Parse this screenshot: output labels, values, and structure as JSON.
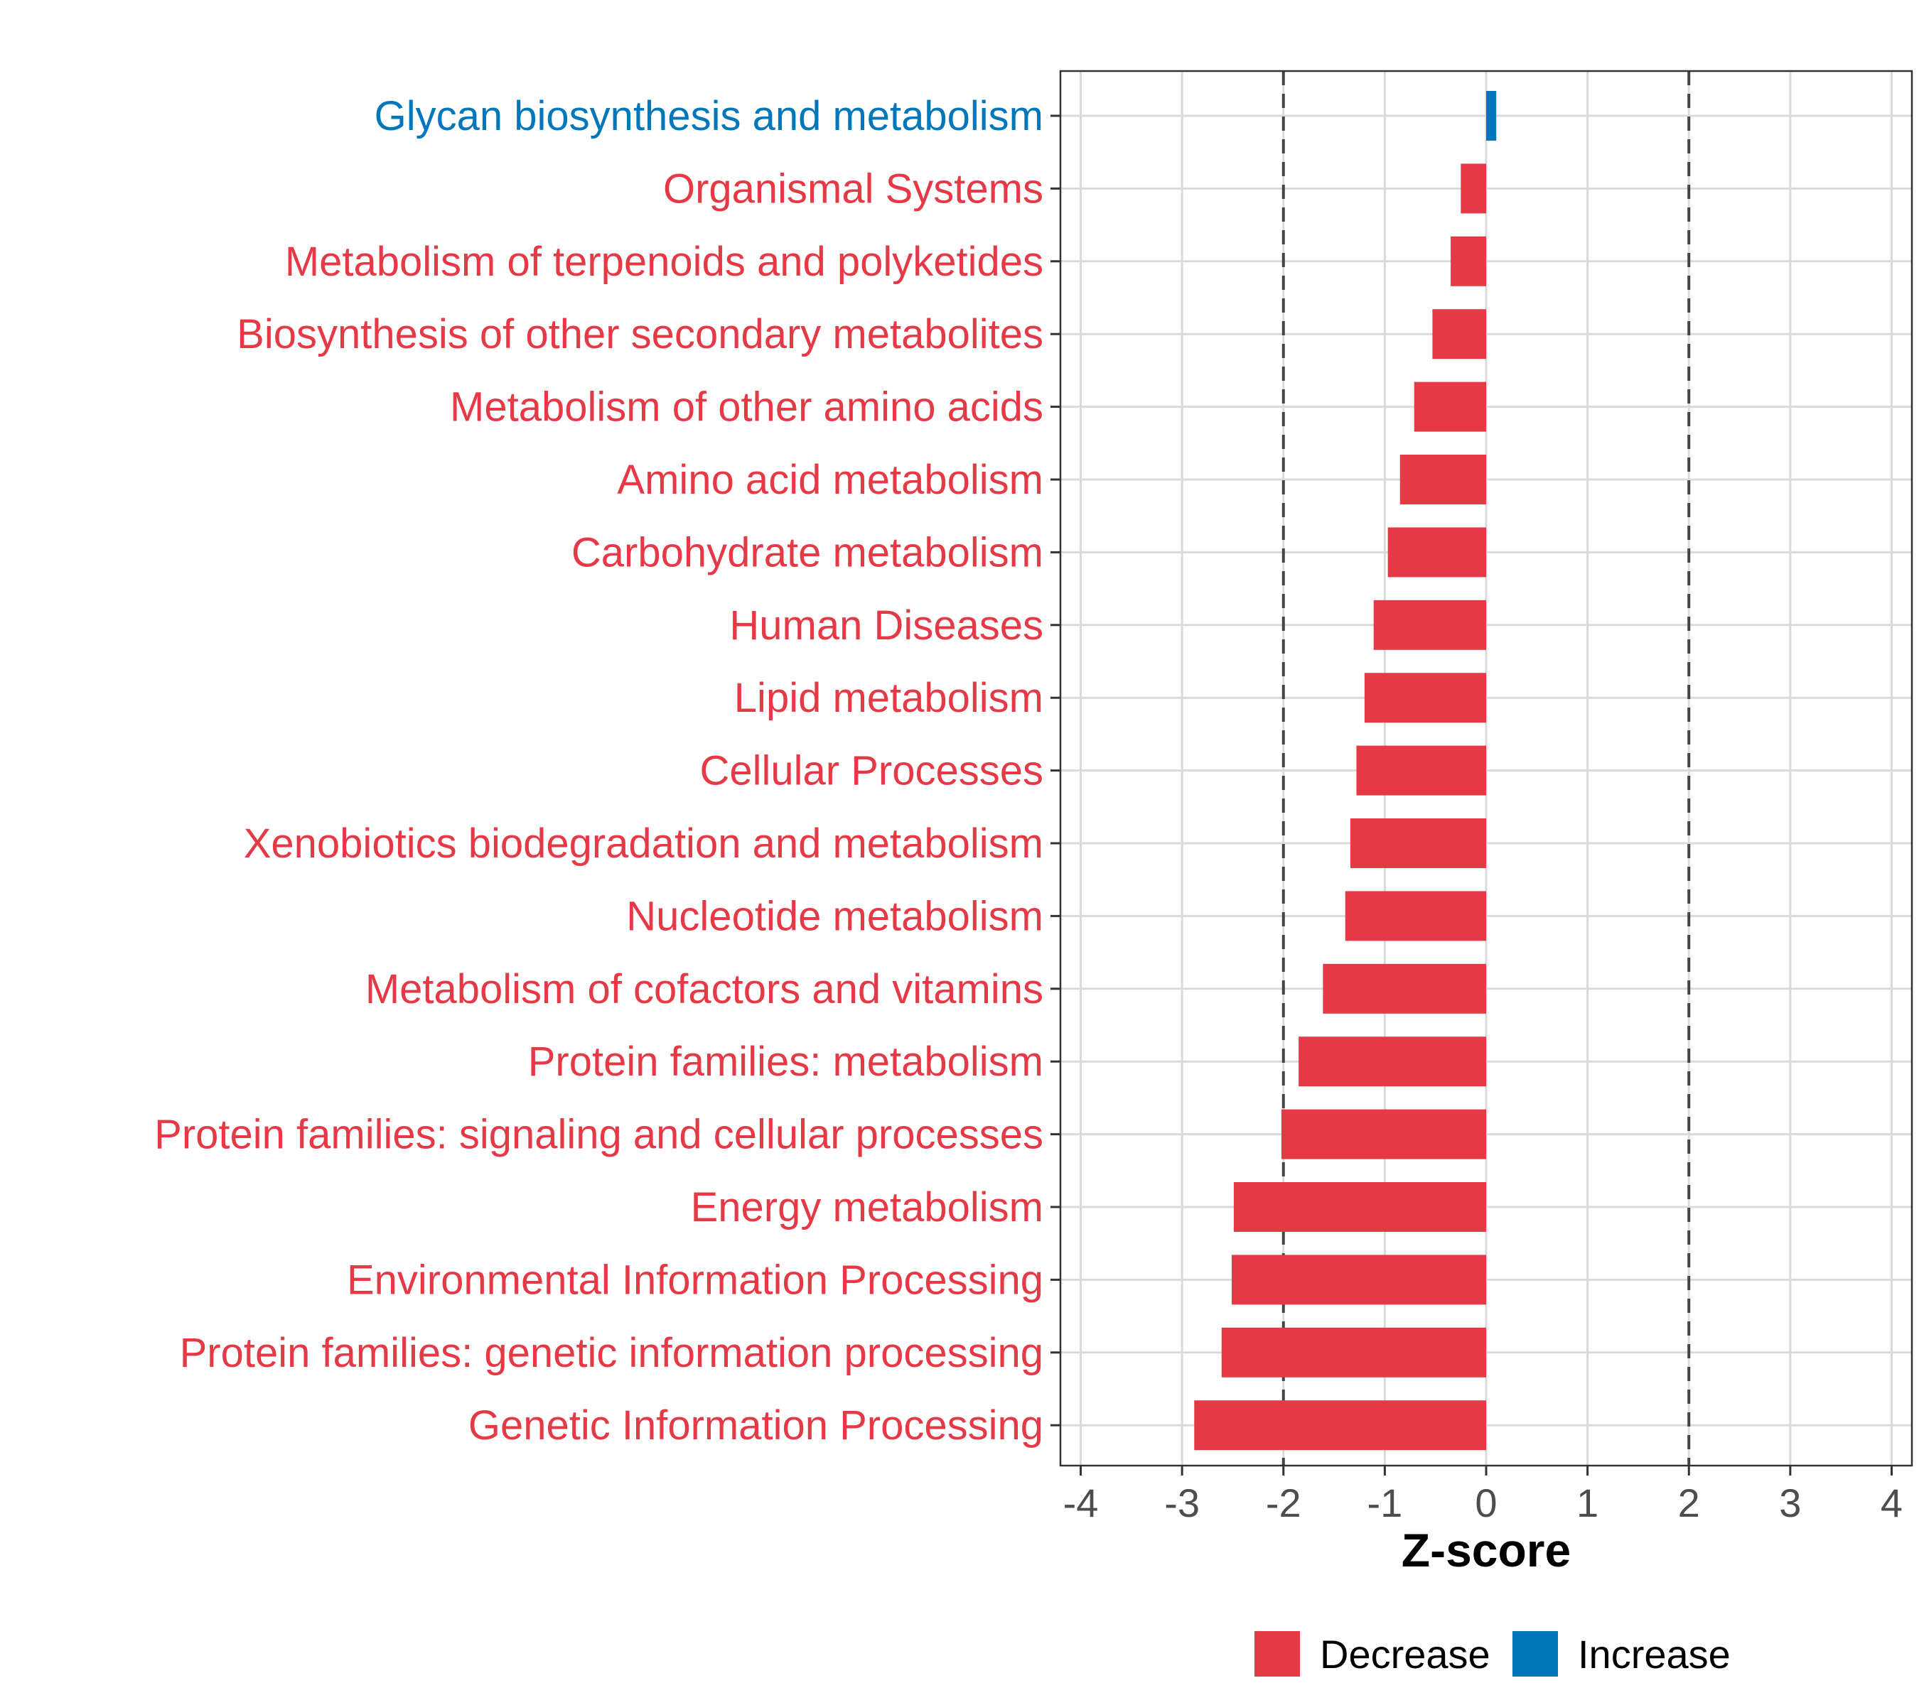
{
  "chart_data": {
    "type": "bar",
    "orientation": "horizontal",
    "title": "",
    "xlabel": "Z-score",
    "ylabel": "",
    "xlim": [
      -4.2,
      4.2
    ],
    "xticks": [
      -4,
      -3,
      -2,
      -1,
      0,
      1,
      2,
      3,
      4
    ],
    "xtick_labels": [
      "-4",
      "-3",
      "-2",
      "-1",
      "0",
      "1",
      "2",
      "3",
      "4"
    ],
    "reference_lines": [
      -2,
      2
    ],
    "grid": true,
    "categories": [
      "Glycan biosynthesis and metabolism",
      "Organismal Systems",
      "Metabolism of terpenoids and polyketides",
      "Biosynthesis of other secondary metabolites",
      "Metabolism of other amino acids",
      "Amino acid metabolism",
      "Carbohydrate metabolism",
      "Human Diseases",
      "Lipid metabolism",
      "Cellular Processes",
      "Xenobiotics biodegradation and metabolism",
      "Nucleotide metabolism",
      "Metabolism of cofactors and vitamins",
      "Protein families: metabolism",
      "Protein families: signaling and cellular processes",
      "Energy metabolism",
      "Environmental Information Processing",
      "Protein families: genetic information processing",
      "Genetic Information Processing"
    ],
    "values": [
      0.1,
      -0.25,
      -0.35,
      -0.53,
      -0.71,
      -0.85,
      -0.97,
      -1.11,
      -1.2,
      -1.28,
      -1.34,
      -1.39,
      -1.61,
      -1.85,
      -2.02,
      -2.49,
      -2.51,
      -2.61,
      -2.88
    ],
    "groups": [
      "Increase",
      "Decrease",
      "Decrease",
      "Decrease",
      "Decrease",
      "Decrease",
      "Decrease",
      "Decrease",
      "Decrease",
      "Decrease",
      "Decrease",
      "Decrease",
      "Decrease",
      "Decrease",
      "Decrease",
      "Decrease",
      "Decrease",
      "Decrease",
      "Decrease"
    ],
    "legend": {
      "position": "bottom",
      "entries": [
        {
          "name": "Decrease",
          "color": "#E63946"
        },
        {
          "name": "Increase",
          "color": "#0077BB"
        }
      ]
    },
    "colors": {
      "Decrease": "#E63946",
      "Increase": "#0077BB"
    }
  }
}
